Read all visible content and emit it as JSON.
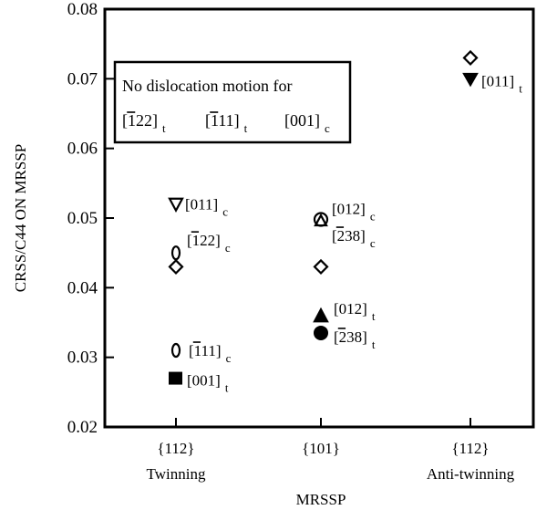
{
  "chart_data": {
    "type": "scatter",
    "xlabel": "MRSSP",
    "ylabel": "CRSS/C44 ON MRSSP",
    "ylim": [
      0.02,
      0.08
    ],
    "yticks": [
      "0.02",
      "0.03",
      "0.04",
      "0.05",
      "0.06",
      "0.07",
      "0.08"
    ],
    "categories": [
      {
        "plane": "{112}",
        "sense": "Twinning"
      },
      {
        "plane": "{101}",
        "sense": ""
      },
      {
        "plane": "{112}",
        "sense": "Anti-twinning"
      }
    ],
    "note": {
      "line1": "No dislocation motion for",
      "items": [
        {
          "dir": "[122]",
          "bar": "1",
          "sub": "t"
        },
        {
          "dir": "[111]",
          "bar": "1",
          "sub": "t"
        },
        {
          "dir": "[001]",
          "bar": "",
          "sub": "c"
        }
      ]
    },
    "points": [
      {
        "cat": 0,
        "y": 0.052,
        "marker": "triangle-down-open",
        "label": "[011]",
        "bar": "",
        "sub": "c"
      },
      {
        "cat": 0,
        "y": 0.045,
        "marker": "ellipse-open",
        "label": "[122]",
        "bar": "1",
        "sub": "c"
      },
      {
        "cat": 0,
        "y": 0.043,
        "marker": "diamond-open",
        "label": "",
        "bar": "",
        "sub": ""
      },
      {
        "cat": 0,
        "y": 0.031,
        "marker": "ellipse-open",
        "label": "[111]",
        "bar": "1",
        "sub": "c"
      },
      {
        "cat": 0,
        "y": 0.027,
        "marker": "square-filled",
        "label": "[001]",
        "bar": "",
        "sub": "t"
      },
      {
        "cat": 1,
        "y": 0.0498,
        "marker": "circle-open",
        "label": "[012]",
        "bar": "",
        "sub": "c"
      },
      {
        "cat": 1,
        "y": 0.0496,
        "marker": "triangle-up-open",
        "label": "[238]",
        "bar": "2",
        "sub": "c"
      },
      {
        "cat": 1,
        "y": 0.043,
        "marker": "diamond-open",
        "label": "",
        "bar": "",
        "sub": ""
      },
      {
        "cat": 1,
        "y": 0.036,
        "marker": "triangle-up-filled",
        "label": "[012]",
        "bar": "",
        "sub": "t"
      },
      {
        "cat": 1,
        "y": 0.0335,
        "marker": "circle-filled",
        "label": "[238]",
        "bar": "2",
        "sub": "t"
      },
      {
        "cat": 2,
        "y": 0.073,
        "marker": "diamond-open",
        "label": "",
        "bar": "",
        "sub": ""
      },
      {
        "cat": 2,
        "y": 0.07,
        "marker": "triangle-down-filled",
        "label": "[011]",
        "bar": "",
        "sub": "t"
      }
    ]
  }
}
